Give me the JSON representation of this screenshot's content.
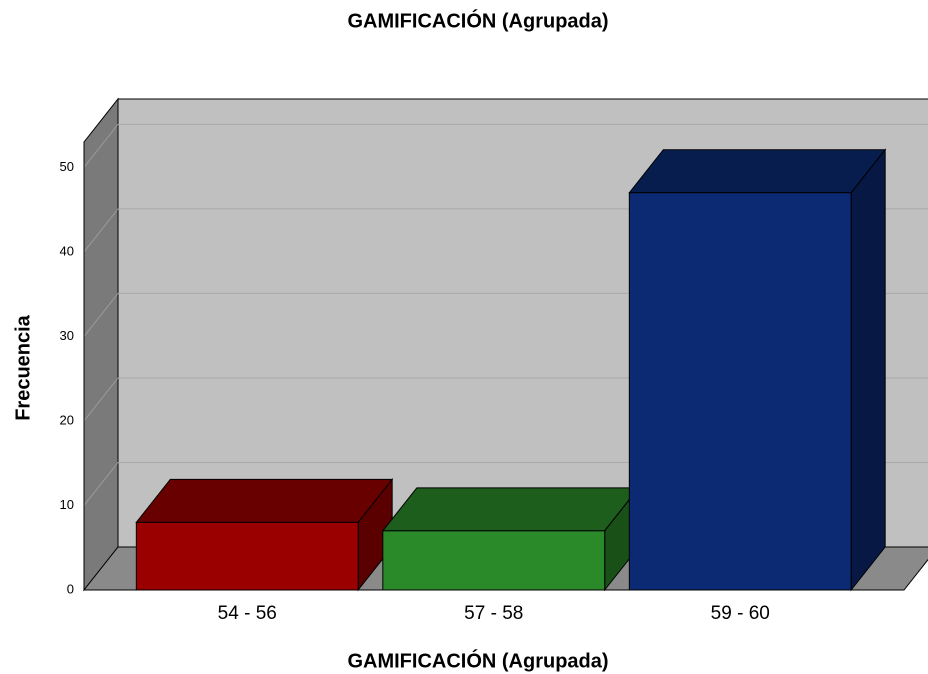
{
  "chart_data": {
    "type": "bar3d",
    "title": "GAMIFICACIÓN (Agrupada)",
    "x_label": "GAMIFICACIÓN (Agrupada)",
    "y_label": "Frecuencia",
    "categories": [
      "54 - 56",
      "57 - 58",
      "59 - 60"
    ],
    "values": [
      8,
      7,
      47
    ],
    "colors": [
      "#9b0000",
      "#2a8a2a",
      "#0b2a73"
    ],
    "ylim": [
      0,
      53
    ],
    "yticks": [
      0,
      10,
      20,
      30,
      40,
      50
    ],
    "grid": true
  }
}
